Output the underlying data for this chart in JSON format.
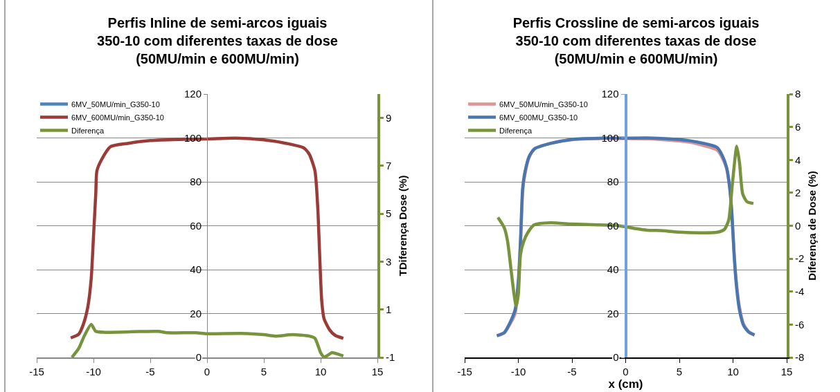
{
  "chart_data": [
    {
      "type": "line",
      "title": "Perfis Inline de semi-arcos iguais 350-10 com diferentes taxas de dose (50MU/min e 600MU/min)",
      "y2label": "TDiferença Dose (%)",
      "xlim": [
        -15,
        15
      ],
      "xticks": [
        -15,
        -10,
        -5,
        0,
        5,
        10,
        15
      ],
      "ylim": [
        0,
        120
      ],
      "yticks": [
        0,
        20,
        40,
        60,
        80,
        100,
        120
      ],
      "y2lim": [
        -1,
        10
      ],
      "y2ticks": [
        -1,
        1,
        3,
        5,
        7,
        9
      ],
      "grid": "y",
      "legend": "top left",
      "series": [
        {
          "name": "6MV_50MU/min_G350-10",
          "color": "#4f81bd"
        },
        {
          "name": "6MV_600MU/min_G350-10",
          "color": "#9b3b38",
          "x": [
            -12,
            -11.3,
            -10.9,
            -10.5,
            -10.2,
            -10,
            -9.8,
            -9.7,
            -9.3,
            -8.5,
            -7,
            -5,
            -2,
            0,
            2.5,
            5,
            7,
            8.5,
            9,
            9.5,
            9.75,
            9.9,
            10.1,
            10.3,
            10.8,
            11.3,
            12
          ],
          "values": [
            8.9,
            10.6,
            15,
            23,
            36,
            55,
            74.5,
            85,
            90,
            96,
            97.5,
            98.8,
            99.4,
            99.5,
            99.9,
            99.1,
            97.5,
            95.5,
            92.6,
            85,
            68,
            48.7,
            25.5,
            17.7,
            12.5,
            10,
            8.7
          ]
        },
        {
          "name": "Diferença",
          "color": "#77933c",
          "axis": "y2",
          "x": [
            -11.9,
            -11.3,
            -10.8,
            -10.2,
            -9.8,
            -9,
            -6,
            -4.3,
            -3.5,
            -1,
            0,
            3,
            5,
            6,
            7.5,
            9,
            9.5,
            10,
            10.3,
            10.6,
            11,
            11.5,
            12
          ],
          "values": [
            -1,
            -0.62,
            -0.09,
            0.38,
            0.09,
            0.05,
            0.08,
            0.09,
            0.03,
            0.03,
            -0.01,
            0,
            -0.05,
            -0.11,
            -0.05,
            -0.11,
            -0.2,
            -0.8,
            -0.98,
            -0.92,
            -0.8,
            -0.86,
            -0.94
          ]
        }
      ]
    },
    {
      "type": "line",
      "title": "Perfis Crossline de semi-arcos iguais 350-10 com diferentes taxas de dose (50MU/min e 600MU/min)",
      "xlabel": "x (cm)",
      "y2label": "Diferença de Dose (%)",
      "xlim": [
        -15,
        15
      ],
      "xticks": [
        -15,
        -10,
        -5,
        0,
        5,
        10,
        15
      ],
      "ylim": [
        0,
        120
      ],
      "yticks": [
        0,
        20,
        40,
        60,
        80,
        100,
        120
      ],
      "y2lim": [
        -8,
        8
      ],
      "y2ticks": [
        -8,
        -6,
        -4,
        -2,
        0,
        2,
        4,
        6,
        8
      ],
      "grid": "y",
      "legend": "top left",
      "series": [
        {
          "name": "6MV_50MU/min_G350-10",
          "color": "#d99694",
          "x": [
            -12,
            -11.3,
            -10.8,
            -10.3,
            -10,
            -9.8,
            -9.6,
            -9.4,
            -9,
            -8.5,
            -7,
            -5,
            -2,
            0,
            2,
            4,
            6,
            8.5,
            9,
            9.4,
            9.7,
            9.9,
            10.1,
            10.3,
            10.6,
            11,
            11.5,
            12
          ],
          "values": [
            9.9,
            11.2,
            15,
            20,
            33,
            51,
            75,
            83,
            91,
            95,
            97.5,
            99.2,
            99.8,
            99.7,
            99.6,
            99,
            98,
            94.5,
            91,
            86,
            77,
            65,
            48,
            35,
            23,
            15,
            11.6,
            10.3
          ]
        },
        {
          "name": "6MV_600MU_G350-10",
          "color": "#4a76b0",
          "x": [
            -12,
            -11.3,
            -10.8,
            -10.3,
            -10,
            -9.8,
            -9.6,
            -9.4,
            -9,
            -8.5,
            -7,
            -5,
            -2,
            0,
            2,
            4,
            6,
            8.5,
            9,
            9.4,
            9.7,
            9.9,
            10.1,
            10.3,
            10.6,
            11,
            11.5,
            12
          ],
          "values": [
            9.9,
            11.4,
            15.6,
            21.7,
            34.9,
            53,
            77,
            84,
            91.5,
            95,
            97.5,
            99.3,
            99.9,
            99.9,
            100,
            99.6,
            98.7,
            95.7,
            92,
            86.6,
            77,
            65,
            47,
            33.7,
            21.7,
            14.4,
            11.4,
            10.2
          ]
        },
        {
          "name": "Diferença",
          "color": "#77933c",
          "axis": "y2",
          "x": [
            -11.9,
            -11.3,
            -11,
            -10.7,
            -10.4,
            -10.2,
            -10,
            -9.8,
            -9.5,
            -9,
            -8.5,
            -7,
            -5,
            -3,
            -1,
            0,
            1,
            2,
            3.5,
            5,
            7,
            8.5,
            9.2,
            9.6,
            9.9,
            10.2,
            10.35,
            10.6,
            10.9,
            11.3,
            11.9
          ],
          "values": [
            0.5,
            -0.14,
            -0.95,
            -2.55,
            -4.16,
            -4.88,
            -4.16,
            -1.75,
            -0.95,
            -0.3,
            0.06,
            0.18,
            0.1,
            0.06,
            0.02,
            -0.06,
            -0.18,
            -0.27,
            -0.3,
            -0.39,
            -0.43,
            -0.4,
            -0.22,
            0.34,
            2.26,
            4.19,
            4.83,
            3.87,
            1.94,
            1.46,
            1.35
          ]
        }
      ]
    }
  ]
}
